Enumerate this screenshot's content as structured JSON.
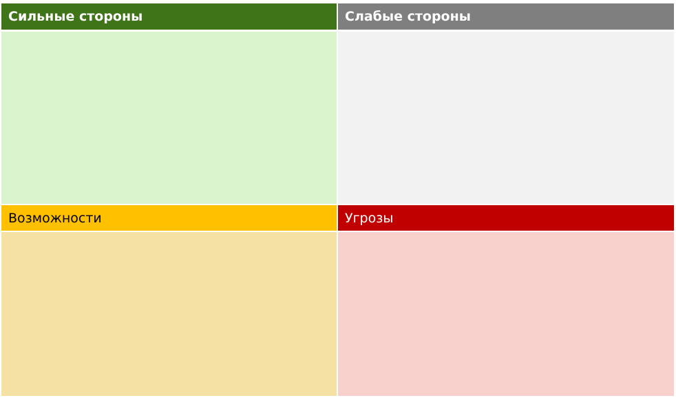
{
  "swot": {
    "strengths": {
      "title": "Сильные стороны",
      "header_color": "#3f7518",
      "body_color": "#daf4cd",
      "text_color": "#ffffff"
    },
    "weaknesses": {
      "title": "Слабые стороны",
      "header_color": "#7f7f7f",
      "body_color": "#f2f2f2",
      "text_color": "#ffffff"
    },
    "opportunities": {
      "title": "Возможности",
      "header_color": "#ffc000",
      "body_color": "#f5e1a3",
      "text_color": "#000000"
    },
    "threats": {
      "title": "Угрозы",
      "header_color": "#c00000",
      "body_color": "#f8d1cc",
      "text_color": "#ffffff"
    }
  }
}
